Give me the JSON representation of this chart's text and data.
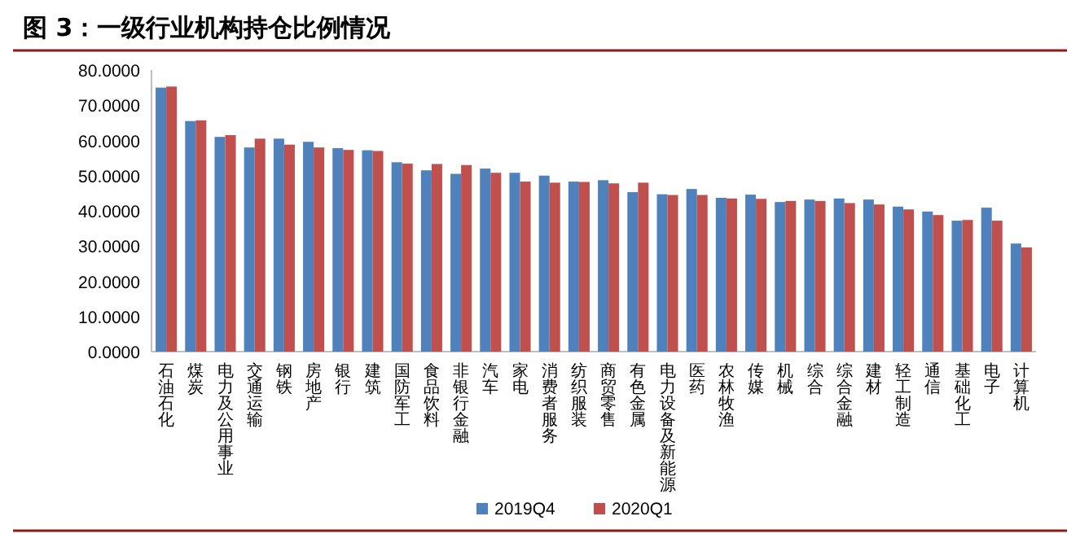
{
  "chart_data": {
    "type": "bar",
    "title": "图 3：一级行业机构持仓比例情况",
    "categories": [
      "石油石化",
      "煤炭",
      "电力及公用事业",
      "交通运输",
      "钢铁",
      "房地产",
      "银行",
      "建筑",
      "国防军工",
      "食品饮料",
      "非银行金融",
      "汽车",
      "家电",
      "消费者服务",
      "纺织服装",
      "商贸零售",
      "有色金属",
      "电力设备及新能源",
      "医药",
      "农林牧渔",
      "传媒",
      "机械",
      "综合",
      "综合金融",
      "建材",
      "轻工制造",
      "通信",
      "基础化工",
      "电子",
      "计算机"
    ],
    "series": [
      {
        "name": "2019Q4",
        "color": "#4f81bd",
        "values": [
          75.0,
          65.5,
          61.0,
          58.0,
          60.5,
          59.6,
          57.8,
          57.2,
          53.8,
          51.5,
          50.5,
          52.0,
          50.8,
          50.0,
          48.3,
          48.7,
          45.3,
          44.7,
          46.2,
          43.7,
          44.6,
          42.5,
          43.2,
          43.5,
          43.2,
          41.2,
          39.8,
          37.2,
          40.9,
          30.7
        ]
      },
      {
        "name": "2020Q1",
        "color": "#c0504d",
        "values": [
          75.3,
          65.7,
          61.5,
          60.5,
          58.8,
          58.0,
          57.3,
          57.0,
          53.4,
          53.3,
          53.0,
          50.8,
          48.3,
          48.0,
          48.2,
          47.8,
          48.0,
          44.5,
          44.5,
          43.5,
          43.4,
          42.8,
          42.8,
          42.2,
          41.8,
          40.4,
          38.8,
          37.4,
          37.2,
          29.6
        ]
      }
    ],
    "ylim": [
      0,
      80
    ],
    "yticks": [
      {
        "value": 0,
        "label": "0.0000"
      },
      {
        "value": 10,
        "label": "10.0000"
      },
      {
        "value": 20,
        "label": "20.0000"
      },
      {
        "value": 30,
        "label": "30.0000"
      },
      {
        "value": 40,
        "label": "40.0000"
      },
      {
        "value": 50,
        "label": "50.0000"
      },
      {
        "value": 60,
        "label": "60.0000"
      },
      {
        "value": 70,
        "label": "70.0000"
      },
      {
        "value": 80,
        "label": "80.0000"
      }
    ],
    "legend": "bottom",
    "grid": false
  }
}
